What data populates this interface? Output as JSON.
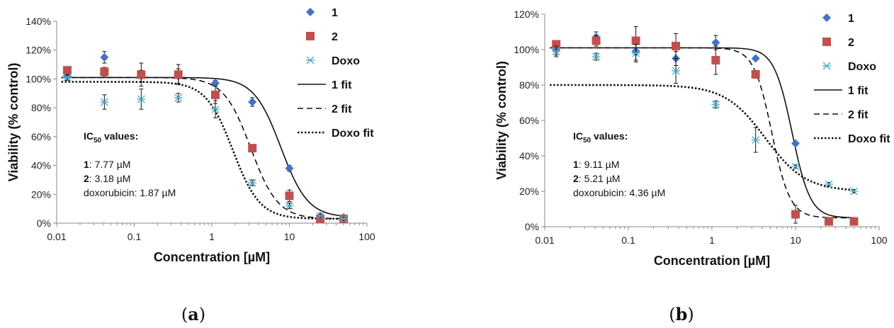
{
  "chart_data": [
    {
      "panel_label": {
        "open": "(",
        "letter": "a",
        "close": ")"
      },
      "type": "scatter",
      "x_scale": "log",
      "xlabel": "Concentration [µM]",
      "ylabel": "Viability (% control)",
      "xlim": [
        0.01,
        100
      ],
      "ylim": [
        0,
        140
      ],
      "x_ticks": [
        "0.01",
        "0.1",
        "1",
        "10",
        "100"
      ],
      "y_ticks": [
        "0%",
        "20%",
        "40%",
        "60%",
        "80%",
        "100%",
        "120%",
        "140%"
      ],
      "grid": false,
      "legend_position": "top-right",
      "legend": [
        "1",
        "2",
        "Doxo",
        "1 fit",
        "2 fit",
        "Doxo fit"
      ],
      "annotation": {
        "heading": "IC",
        "heading_sub": "50",
        "heading_rest": " values:",
        "lines": [
          {
            "label": "1",
            "text": ": 7.77 µM"
          },
          {
            "label": "2",
            "text": ": 3.18 µM"
          },
          {
            "label": "",
            "text": "doxorubicin:  1.87 µM"
          }
        ]
      },
      "series": [
        {
          "name": "1",
          "marker": "diamond",
          "color": "#4472c4",
          "x": [
            0.0137,
            0.0412,
            0.123,
            0.37,
            1.11,
            3.33,
            10,
            25,
            50
          ],
          "y": [
            102,
            115,
            102,
            102,
            97,
            84,
            38,
            5,
            4
          ],
          "err": [
            2,
            4,
            4,
            5,
            2,
            3,
            2,
            1,
            1
          ]
        },
        {
          "name": "2",
          "marker": "square",
          "color": "#c0504d",
          "x": [
            0.0137,
            0.0412,
            0.123,
            0.37,
            1.11,
            3.33,
            10,
            25,
            50
          ],
          "y": [
            106,
            105,
            103,
            103,
            89,
            52,
            19,
            3,
            3
          ],
          "err": [
            2,
            3,
            8,
            7,
            6,
            2,
            4,
            1,
            1
          ]
        },
        {
          "name": "Doxo",
          "marker": "asterisk",
          "color": "#4bacc6",
          "x": [
            0.0137,
            0.0412,
            0.123,
            0.37,
            1.11,
            3.33,
            10,
            25,
            50
          ],
          "y": [
            101,
            84,
            86,
            87,
            79,
            28,
            12,
            5,
            3
          ],
          "err": [
            2,
            5,
            7,
            3,
            6,
            2,
            2,
            1,
            1
          ]
        }
      ],
      "fits": [
        {
          "name": "1 fit",
          "style": "solid",
          "top": 101,
          "bottom": 4,
          "ic50": 7.77,
          "hill": 2.5
        },
        {
          "name": "2 fit",
          "style": "dashed",
          "top": 101,
          "bottom": 3,
          "ic50": 3.18,
          "hill": 2.5
        },
        {
          "name": "Doxo fit",
          "style": "dotted",
          "top": 98,
          "bottom": 3,
          "ic50": 1.87,
          "hill": 2.5
        }
      ]
    },
    {
      "panel_label": {
        "open": "(",
        "letter": "b",
        "close": ")"
      },
      "type": "scatter",
      "x_scale": "log",
      "xlabel": "Concentration [µM]",
      "ylabel": "Viability (% control)",
      "xlim": [
        0.01,
        100
      ],
      "ylim": [
        0,
        120
      ],
      "x_ticks": [
        "0.01",
        "0.1",
        "1",
        "10",
        "100"
      ],
      "y_ticks": [
        "0%",
        "20%",
        "40%",
        "60%",
        "80%",
        "100%",
        "120%"
      ],
      "grid": false,
      "legend_position": "top-right",
      "legend": [
        "1",
        "2",
        "Doxo",
        "1 fit",
        "2 fit",
        "Doxo fit"
      ],
      "annotation": {
        "heading": "IC",
        "heading_sub": "50",
        "heading_rest": " values:",
        "lines": [
          {
            "label": "1",
            "text": ": 9.11 µM"
          },
          {
            "label": "2",
            "text": ": 5.21 µM"
          },
          {
            "label": "",
            "text": "doxorubicin:  4.36 µM"
          }
        ]
      },
      "series": [
        {
          "name": "1",
          "marker": "diamond",
          "color": "#4472c4",
          "x": [
            0.0137,
            0.0412,
            0.123,
            0.37,
            1.11,
            3.33,
            10,
            25,
            50
          ],
          "y": [
            100,
            107,
            99,
            95,
            104,
            95,
            47,
            3,
            3
          ],
          "err": [
            3,
            3,
            5,
            4,
            4,
            1,
            1,
            1,
            1
          ]
        },
        {
          "name": "2",
          "marker": "square",
          "color": "#c0504d",
          "x": [
            0.0137,
            0.0412,
            0.123,
            0.37,
            1.11,
            3.33,
            10,
            25,
            50
          ],
          "y": [
            103,
            105,
            105,
            102,
            94,
            86,
            7,
            3,
            3
          ],
          "err": [
            2,
            3,
            8,
            7,
            8,
            2,
            5,
            1,
            1
          ]
        },
        {
          "name": "Doxo",
          "marker": "asterisk",
          "color": "#4bacc6",
          "x": [
            0.0137,
            0.0412,
            0.123,
            0.37,
            1.11,
            3.33,
            10,
            25,
            50
          ],
          "y": [
            99,
            96,
            98,
            88,
            69,
            49,
            34,
            24,
            20
          ],
          "err": [
            3,
            2,
            5,
            7,
            2,
            7,
            1,
            1,
            1
          ]
        }
      ],
      "fits": [
        {
          "name": "1 fit",
          "style": "solid",
          "top": 101,
          "bottom": 5,
          "ic50": 9.11,
          "hill": 4
        },
        {
          "name": "2 fit",
          "style": "dashed",
          "top": 101,
          "bottom": 5,
          "ic50": 5.21,
          "hill": 4
        },
        {
          "name": "Doxo fit",
          "style": "dotted",
          "top": 80,
          "bottom": 20,
          "ic50": 4.36,
          "hill": 1.8
        }
      ]
    }
  ]
}
